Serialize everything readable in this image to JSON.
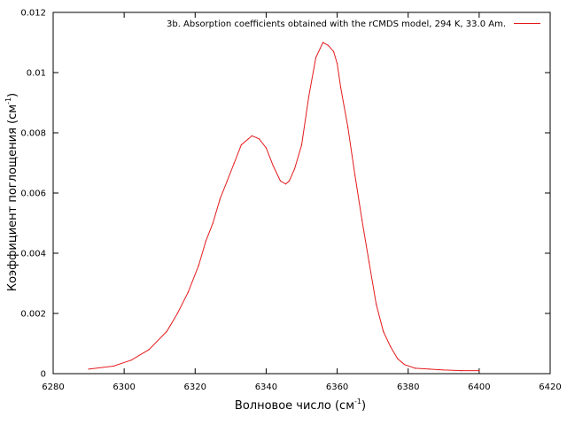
{
  "chart_data": {
    "type": "line",
    "xlabel": "Волновое число (см",
    "xlabel_sup": "-1",
    "xlabel_end": ")",
    "ylabel": "Коэффициент поглощения (см",
    "ylabel_sup": "-1",
    "ylabel_end": ")",
    "xlim": [
      6280,
      6420
    ],
    "ylim": [
      0,
      0.012
    ],
    "xticks": [
      "6280",
      "6300",
      "6320",
      "6340",
      "6360",
      "6380",
      "6400",
      "6420"
    ],
    "yticks": [
      "0",
      "0.002",
      "0.004",
      "0.006",
      "0.008",
      "0.01",
      "0.012"
    ],
    "grid": false,
    "legend_position": "top-right",
    "series": [
      {
        "name": "3b. Absorption coefficients obtained with the rCMDS model, 294 K, 33.0 Am.",
        "color": "#e41a1c",
        "x": [
          6290,
          6297,
          6302,
          6307,
          6312,
          6315,
          6318,
          6321,
          6323,
          6325,
          6327,
          6329,
          6331,
          6333,
          6335,
          6336,
          6338,
          6340,
          6342,
          6344,
          6345.5,
          6346.5,
          6348,
          6350,
          6352,
          6354,
          6356,
          6357.5,
          6359,
          6360,
          6361,
          6363,
          6365,
          6367,
          6369,
          6371,
          6373,
          6375,
          6377,
          6379,
          6382,
          6386,
          6390,
          6395,
          6400
        ],
        "y": [
          0.00015,
          0.00025,
          0.00045,
          0.0008,
          0.0014,
          0.002,
          0.0027,
          0.0036,
          0.0044,
          0.005,
          0.0058,
          0.0064,
          0.007,
          0.0076,
          0.0078,
          0.0079,
          0.0078,
          0.0075,
          0.0069,
          0.0064,
          0.0063,
          0.0064,
          0.0068,
          0.0076,
          0.0092,
          0.0105,
          0.011,
          0.0109,
          0.0107,
          0.0103,
          0.0095,
          0.0082,
          0.0066,
          0.0051,
          0.0037,
          0.0023,
          0.0014,
          0.0009,
          0.0005,
          0.0003,
          0.00018,
          0.00015,
          0.00012,
          0.0001,
          0.0001
        ]
      }
    ]
  }
}
